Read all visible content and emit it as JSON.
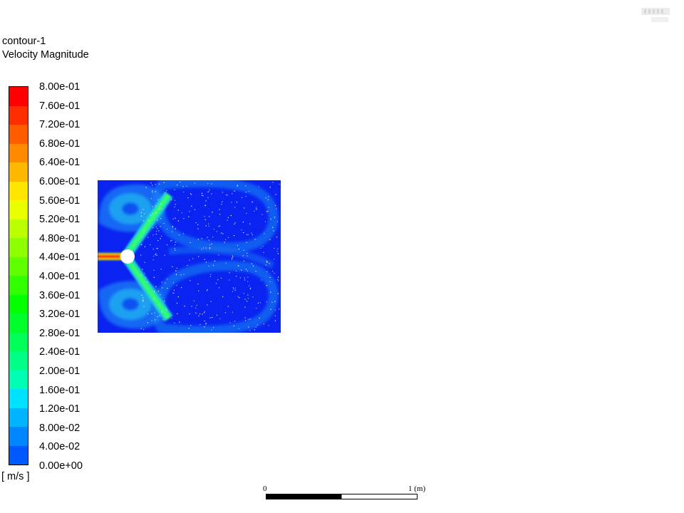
{
  "header": {
    "contour_name": "contour-1",
    "variable": "Velocity Magnitude"
  },
  "legend": {
    "labels": [
      "8.00e-01",
      "7.60e-01",
      "7.20e-01",
      "6.80e-01",
      "6.40e-01",
      "6.00e-01",
      "5.60e-01",
      "5.20e-01",
      "4.80e-01",
      "4.40e-01",
      "4.00e-01",
      "3.60e-01",
      "3.20e-01",
      "2.80e-01",
      "2.40e-01",
      "2.00e-01",
      "1.60e-01",
      "1.20e-01",
      "8.00e-02",
      "4.00e-02",
      "0.00e+00"
    ],
    "colors": [
      "#ff0000",
      "#ff2e00",
      "#ff5c00",
      "#ff8a00",
      "#ffb800",
      "#ffe600",
      "#eaff00",
      "#bcff00",
      "#8eff00",
      "#60ff00",
      "#32ff00",
      "#04ff00",
      "#00ff2a",
      "#00ff58",
      "#00ff86",
      "#00ffb4",
      "#00e2ff",
      "#00b4ff",
      "#0086ff",
      "#0058ff",
      "#002aff"
    ],
    "units": "[ m/s ]"
  },
  "scale_bar": {
    "start_label": "0",
    "end_label": "1 (m)"
  },
  "plot": {
    "background_color": "#0a23f0",
    "obstacle_color": "#ffffff"
  }
}
